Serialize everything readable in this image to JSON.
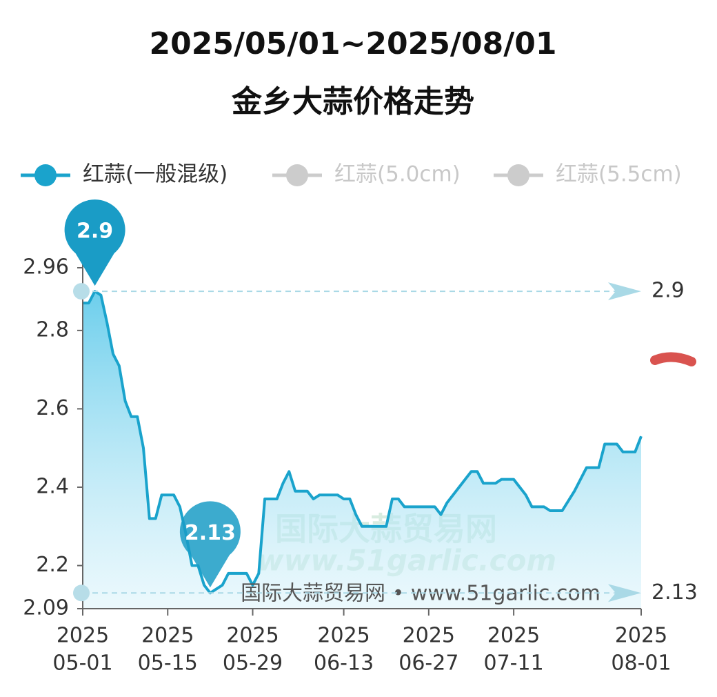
{
  "chart_data": {
    "type": "line",
    "title": "2025/05/01~2025/08/01",
    "subtitle": "金乡大蒜价格走势",
    "source": "国际大蒜贸易网 • www.51garlic.com",
    "watermark": [
      "国际大蒜贸易网",
      "www.51garlic.com"
    ],
    "x": [
      "2025-05-01",
      "2025-05-02",
      "2025-05-03",
      "2025-05-04",
      "2025-05-05",
      "2025-05-06",
      "2025-05-07",
      "2025-05-08",
      "2025-05-09",
      "2025-05-10",
      "2025-05-11",
      "2025-05-12",
      "2025-05-13",
      "2025-05-14",
      "2025-05-15",
      "2025-05-16",
      "2025-05-17",
      "2025-05-18",
      "2025-05-19",
      "2025-05-20",
      "2025-05-21",
      "2025-05-22",
      "2025-05-23",
      "2025-05-24",
      "2025-05-25",
      "2025-05-26",
      "2025-05-27",
      "2025-05-28",
      "2025-05-29",
      "2025-05-30",
      "2025-05-31",
      "2025-06-02",
      "2025-06-03",
      "2025-06-04",
      "2025-06-05",
      "2025-06-07",
      "2025-06-08",
      "2025-06-09",
      "2025-06-12",
      "2025-06-13",
      "2025-06-14",
      "2025-06-15",
      "2025-06-16",
      "2025-06-20",
      "2025-06-21",
      "2025-06-22",
      "2025-06-23",
      "2025-06-28",
      "2025-06-29",
      "2025-06-30",
      "2025-07-01",
      "2025-07-02",
      "2025-07-04",
      "2025-07-05",
      "2025-07-06",
      "2025-07-08",
      "2025-07-09",
      "2025-07-11",
      "2025-07-12",
      "2025-07-13",
      "2025-07-14",
      "2025-07-16",
      "2025-07-17",
      "2025-07-19",
      "2025-07-21",
      "2025-07-23",
      "2025-07-25",
      "2025-07-26",
      "2025-07-28",
      "2025-07-29",
      "2025-07-31",
      "2025-08-01"
    ],
    "series": [
      {
        "name": "红蒜(一般混级)",
        "color": "#1aa3cc",
        "values": [
          2.87,
          2.87,
          2.9,
          2.89,
          2.82,
          2.74,
          2.71,
          2.62,
          2.58,
          2.58,
          2.5,
          2.32,
          2.32,
          2.38,
          2.38,
          2.38,
          2.35,
          2.28,
          2.2,
          2.2,
          2.15,
          2.13,
          2.14,
          2.15,
          2.18,
          2.18,
          2.18,
          2.18,
          2.15,
          2.18,
          2.37,
          2.37,
          2.41,
          2.44,
          2.39,
          2.39,
          2.37,
          2.38,
          2.38,
          2.37,
          2.37,
          2.33,
          2.3,
          2.3,
          2.37,
          2.37,
          2.35,
          2.35,
          2.33,
          2.36,
          2.38,
          2.4,
          2.44,
          2.44,
          2.41,
          2.41,
          2.42,
          2.42,
          2.4,
          2.38,
          2.35,
          2.35,
          2.34,
          2.34,
          2.39,
          2.45,
          2.45,
          2.51,
          2.51,
          2.49,
          2.49,
          2.53
        ]
      }
    ],
    "hidden_series": [
      {
        "name": "红蒜(5.0cm)",
        "color": "#cccccc"
      },
      {
        "name": "红蒜(5.5cm)",
        "color": "#cccccc"
      }
    ],
    "max": 2.9,
    "min": 2.13,
    "ylim": [
      2.09,
      2.96
    ],
    "yticks": [
      2.09,
      2.2,
      2.4,
      2.6,
      2.8,
      2.96
    ],
    "xlim": [
      "2025-05-01",
      "2025-08-01"
    ],
    "xticks": [
      {
        "value": "2025-05-01",
        "label": [
          "2025",
          "05-01"
        ]
      },
      {
        "value": "2025-05-15",
        "label": [
          "2025",
          "05-15"
        ]
      },
      {
        "value": "2025-05-29",
        "label": [
          "2025",
          "05-29"
        ]
      },
      {
        "value": "2025-06-13",
        "label": [
          "2025",
          "06-13"
        ]
      },
      {
        "value": "2025-06-27",
        "label": [
          "2025",
          "06-27"
        ]
      },
      {
        "value": "2025-07-11",
        "label": [
          "2025",
          "07-11"
        ]
      },
      {
        "value": "2025-08-01",
        "label": [
          "2025",
          "08-01"
        ]
      }
    ]
  }
}
